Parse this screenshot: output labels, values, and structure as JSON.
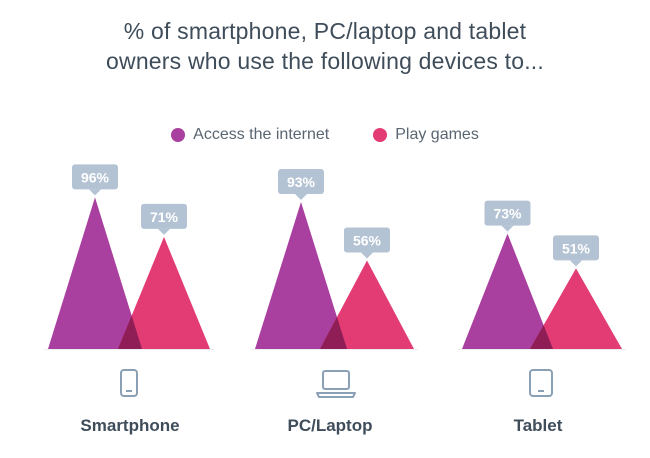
{
  "title_lines": [
    "% of smartphone, PC/laptop and tablet",
    "owners who use the following devices to..."
  ],
  "colors": {
    "access": "#a93f9e",
    "games": "#e33b73",
    "overlap": "#8e1e55",
    "label_bg": "#b4c3d4",
    "label_text": "#ffffff",
    "icon": "#8aa0b4",
    "baseline": "#eeeeee"
  },
  "chart_data": {
    "type": "area",
    "categories": [
      "Smartphone",
      "PC/Laptop",
      "Tablet"
    ],
    "icons": [
      "smartphone-icon",
      "laptop-icon",
      "tablet-icon"
    ],
    "series": [
      {
        "name": "Access the internet",
        "values": [
          96,
          93,
          73
        ]
      },
      {
        "name": "Play games",
        "values": [
          71,
          56,
          51
        ]
      }
    ],
    "data_labels": [
      [
        "96%",
        "71%"
      ],
      [
        "93%",
        "56%"
      ],
      [
        "73%",
        "51%"
      ]
    ],
    "legend_position": "top-center",
    "ylim": [
      0,
      100
    ],
    "grid": false
  }
}
